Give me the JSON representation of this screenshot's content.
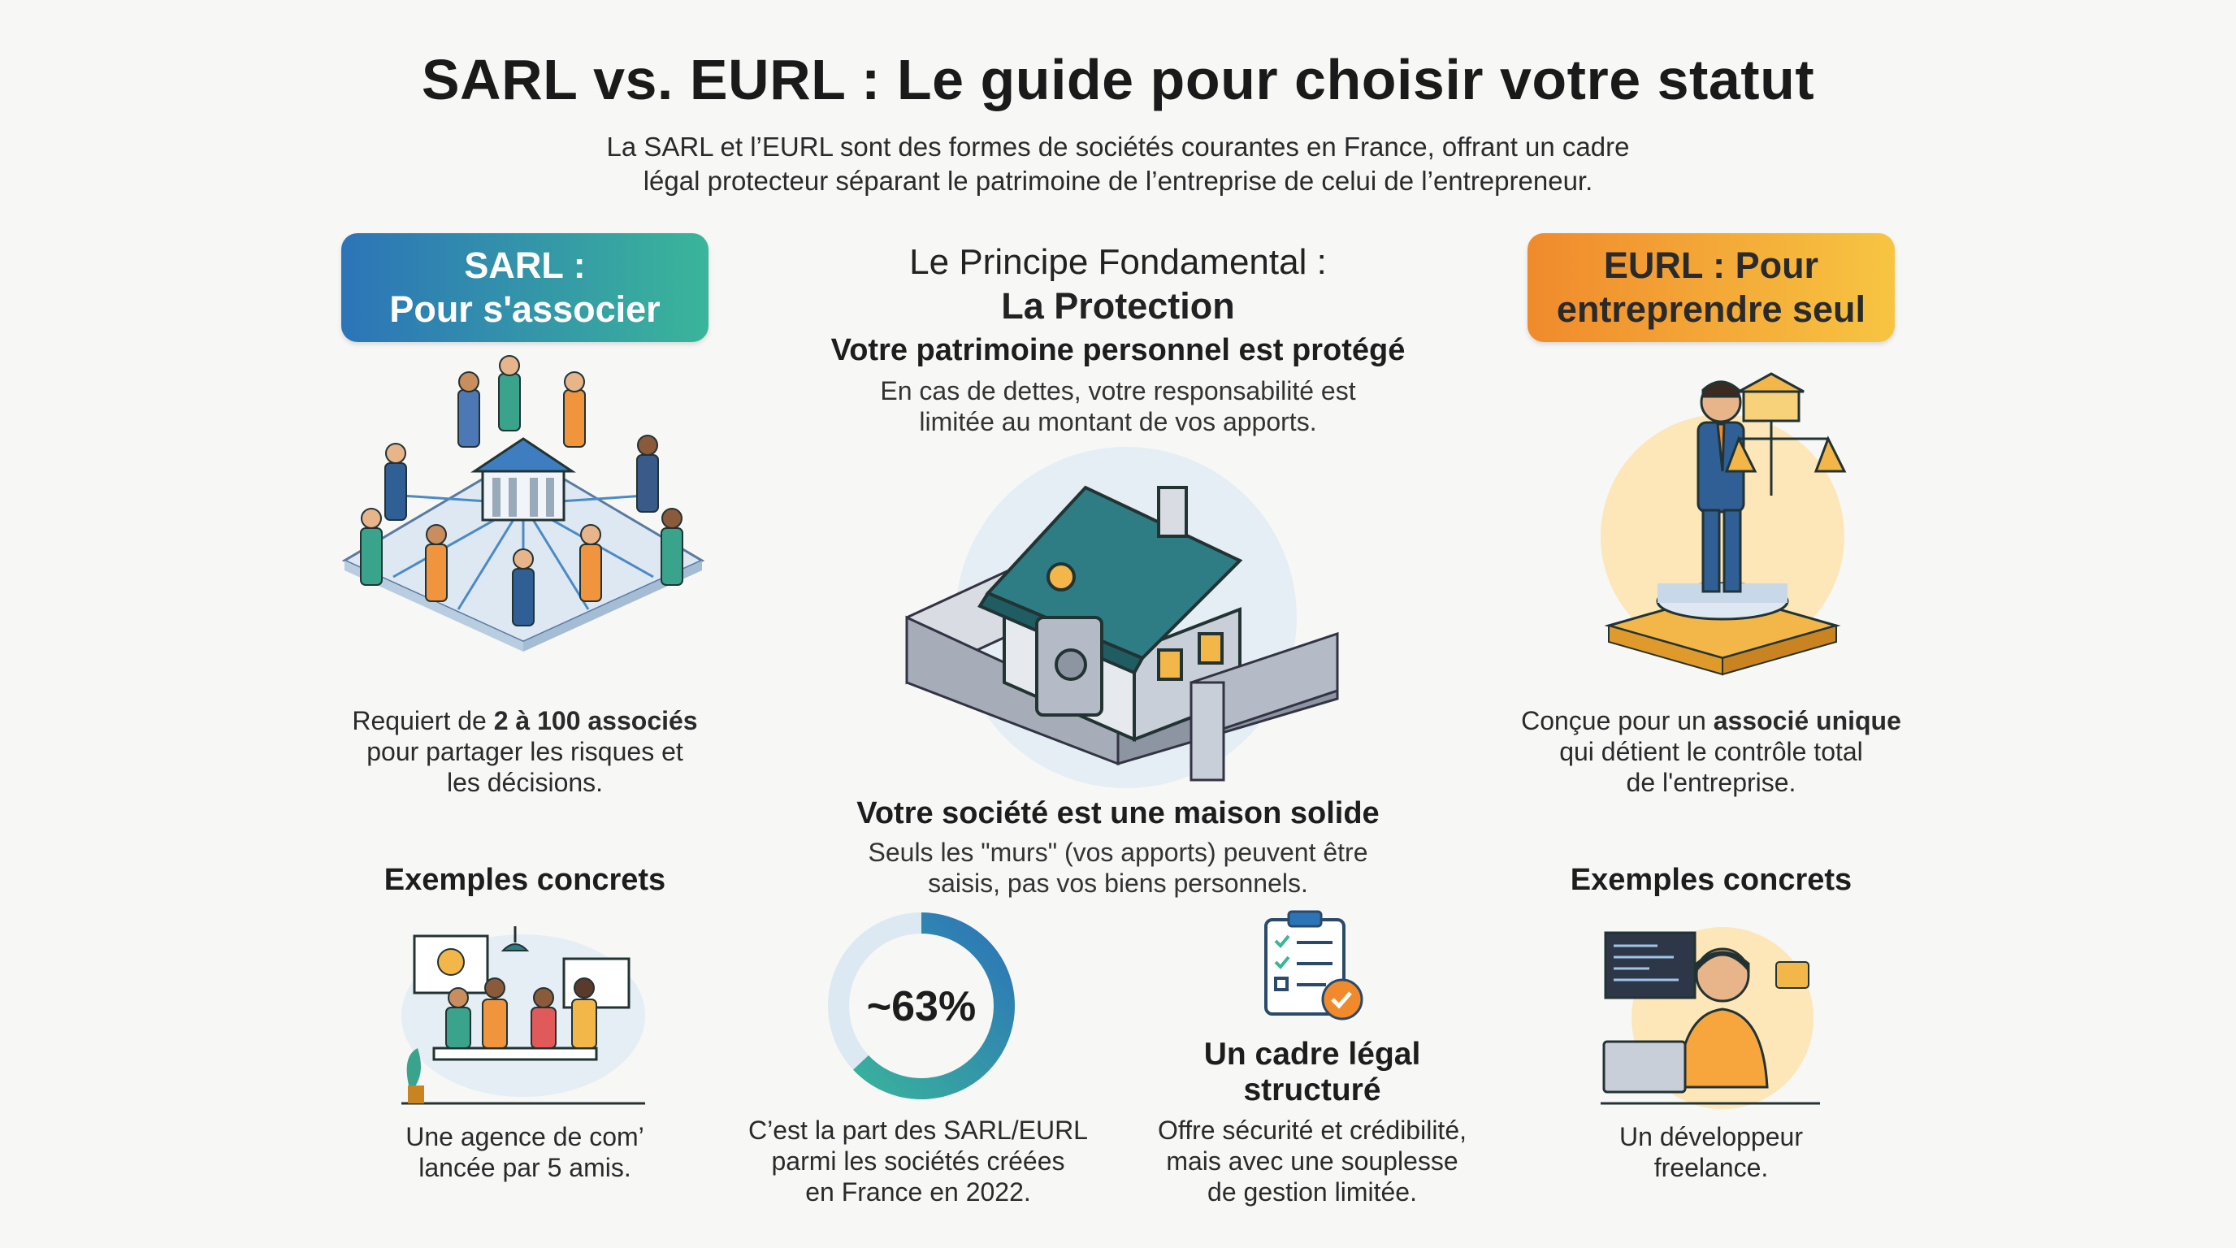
{
  "header": {
    "title": "SARL vs. EURL : Le guide pour choisir votre statut",
    "subtitle_line1": "La SARL et l’EURL sont des formes de sociétés courantes en France, offrant un cadre",
    "subtitle_line2": "légal protecteur séparant le patrimoine de l’entreprise de celui de l’entrepreneur."
  },
  "sarl": {
    "pill_line1": "SARL :",
    "pill_line2": "Pour s'associer",
    "desc_pre": "Requiert de ",
    "desc_bold": "2 à 100 associés",
    "desc_line2": "pour partager les risques et",
    "desc_line3": "les décisions.",
    "examples_heading": "Exemples concrets",
    "example_line1": "Une agence de com’",
    "example_line2": "lancée par 5 amis."
  },
  "eurl": {
    "pill_line1": "EURL : Pour",
    "pill_line2": "entreprendre seul",
    "desc_pre": "Conçue pour un ",
    "desc_bold": "associé unique",
    "desc_line2": "qui détient le contrôle total",
    "desc_line3": "de l'entreprise.",
    "examples_heading": "Exemples concrets",
    "example_line1": "Un développeur",
    "example_line2": "freelance."
  },
  "principle": {
    "title_line1": "Le Principe Fondamental :",
    "title_line2": "La Protection",
    "heading": "Votre patrimoine personnel est protégé",
    "text_line1": "En cas de dettes, votre responsabilité est",
    "text_line2": "limitée au montant de vos apports."
  },
  "house": {
    "heading": "Votre société est une maison solide",
    "text_line1": "Seuls les \"murs\" (vos apports) peuvent être",
    "text_line2": "saisis, pas vos biens personnels."
  },
  "stat": {
    "label": "~63%",
    "fraction": 0.63,
    "text_line1": "C’est la part des SARL/EURL",
    "text_line2": "parmi les sociétés créées",
    "text_line3": "en France en 2022."
  },
  "cadre": {
    "heading_line1": "Un cadre légal",
    "heading_line2": "structuré",
    "text_line1": "Offre sécurité et crédibilité,",
    "text_line2": "mais avec une souplesse",
    "text_line3": "de gestion limitée."
  },
  "colors": {
    "blue": "#2c74b8",
    "teal": "#3ab59a",
    "orange": "#f08a2c",
    "yellow": "#f7c542",
    "ring_track": "#dce9f2"
  }
}
